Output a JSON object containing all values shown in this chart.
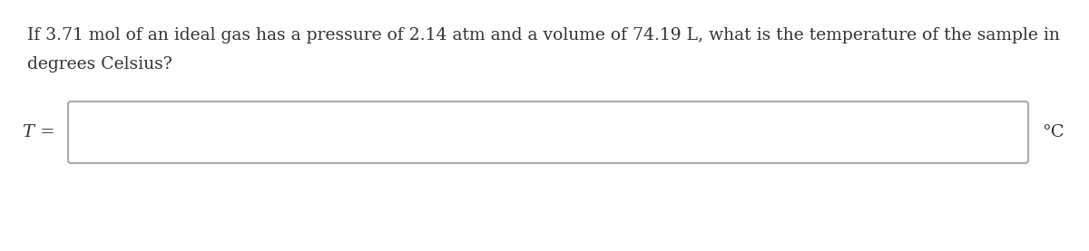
{
  "question_line1": "If 3.71 mol of an ideal gas has a pressure of 2.14 atm and a volume of 74.19 L, what is the temperature of the sample in",
  "question_line2": "degrees Celsius?",
  "label_T": "T =",
  "label_unit": "°C",
  "background_color": "#ffffff",
  "text_color": "#333333",
  "box_facecolor": "#ffffff",
  "box_edgecolor": "#aaaaaa",
  "question_fontsize": 13.5,
  "label_fontsize": 14,
  "unit_fontsize": 14
}
